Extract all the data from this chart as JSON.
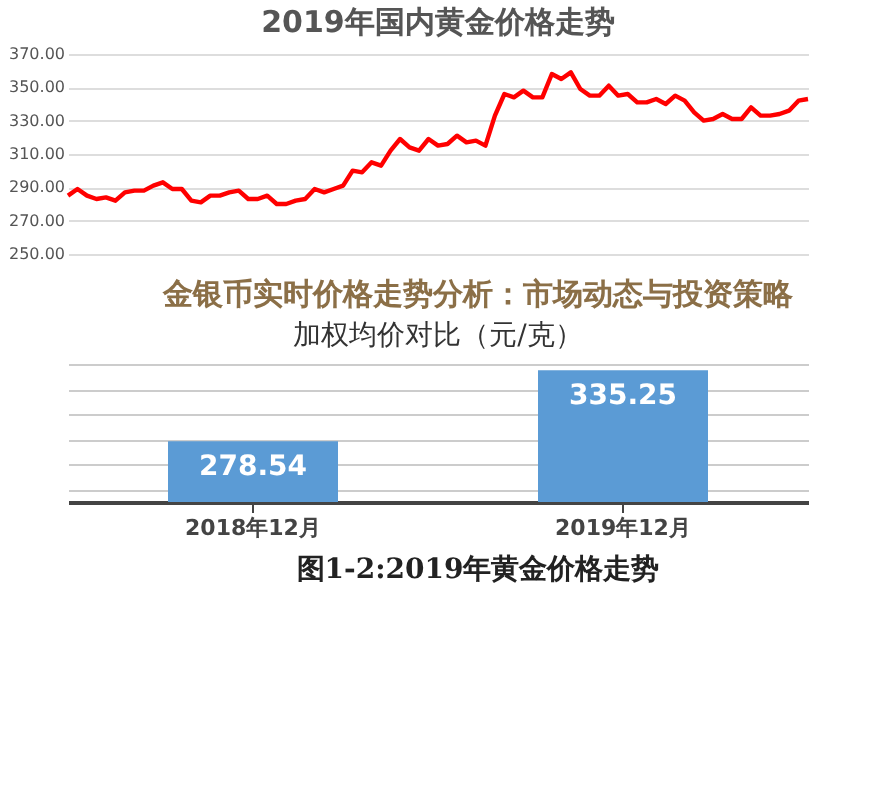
{
  "chart_data": [
    {
      "type": "line",
      "title": "2019年国内黄金价格走势",
      "categories": [
        null,
        null,
        null,
        null,
        null,
        null,
        null,
        null,
        null,
        null,
        null,
        null,
        null,
        null,
        null,
        null,
        null,
        null,
        null,
        null,
        null,
        null,
        null,
        null,
        null,
        null,
        null,
        null,
        null,
        null,
        null,
        null,
        null,
        null,
        null,
        null,
        null,
        null,
        null,
        null,
        null,
        null,
        null,
        null,
        null,
        null,
        null,
        null,
        null,
        null,
        null,
        null,
        null,
        null,
        null,
        null,
        null,
        null,
        null,
        null,
        null,
        null,
        null,
        null,
        null,
        null,
        null,
        null,
        null,
        null,
        null,
        null,
        null,
        null,
        null,
        null,
        null,
        null,
        null
      ],
      "series": [
        {
          "color": "#ff0000",
          "values": [
            285,
            289,
            285,
            283,
            284,
            282,
            287,
            288,
            288,
            291,
            293,
            289,
            289,
            282,
            281,
            285,
            285,
            287,
            288,
            283,
            283,
            285,
            280,
            280,
            282,
            283,
            289,
            287,
            289,
            291,
            300,
            299,
            305,
            303,
            312,
            319,
            314,
            312,
            319,
            315,
            316,
            321,
            317,
            318,
            315,
            333,
            346,
            344,
            348,
            344,
            344,
            358,
            355,
            359,
            349,
            345,
            345,
            351,
            345,
            346,
            341,
            341,
            343,
            340,
            345,
            342,
            335,
            330,
            331,
            334,
            331,
            331,
            338,
            333,
            333,
            334,
            336,
            342,
            343
          ]
        }
      ],
      "ylim": [
        250,
        370
      ],
      "yticks": [
        {
          "value": 250,
          "label": "250.00"
        },
        {
          "value": 270,
          "label": "270.00"
        },
        {
          "value": 290,
          "label": "290.00"
        },
        {
          "value": 310,
          "label": "310.00"
        },
        {
          "value": 330,
          "label": "330.00"
        },
        {
          "value": 350,
          "label": "350.00"
        },
        {
          "value": 370,
          "label": "370.00"
        }
      ],
      "grid": "y",
      "tick_labels": "y",
      "line_style": "solid",
      "marker": "none",
      "annotations": [
        "金银币实时价格走势分析：市场动态与投资策略"
      ]
    },
    {
      "type": "bar",
      "title": "加权均价对比（元/克）",
      "categories": [
        "2018年12月",
        "2019年12月"
      ],
      "series": [
        {
          "color": "#5b9bd5",
          "values": [
            278.54,
            335.25
          ]
        }
      ],
      "ylim": [
        230,
        345
      ],
      "grid": "y",
      "tick_labels": "x",
      "data_labels": true,
      "annotations": [
        "图1-2:2019年黄金价格走势"
      ]
    }
  ]
}
